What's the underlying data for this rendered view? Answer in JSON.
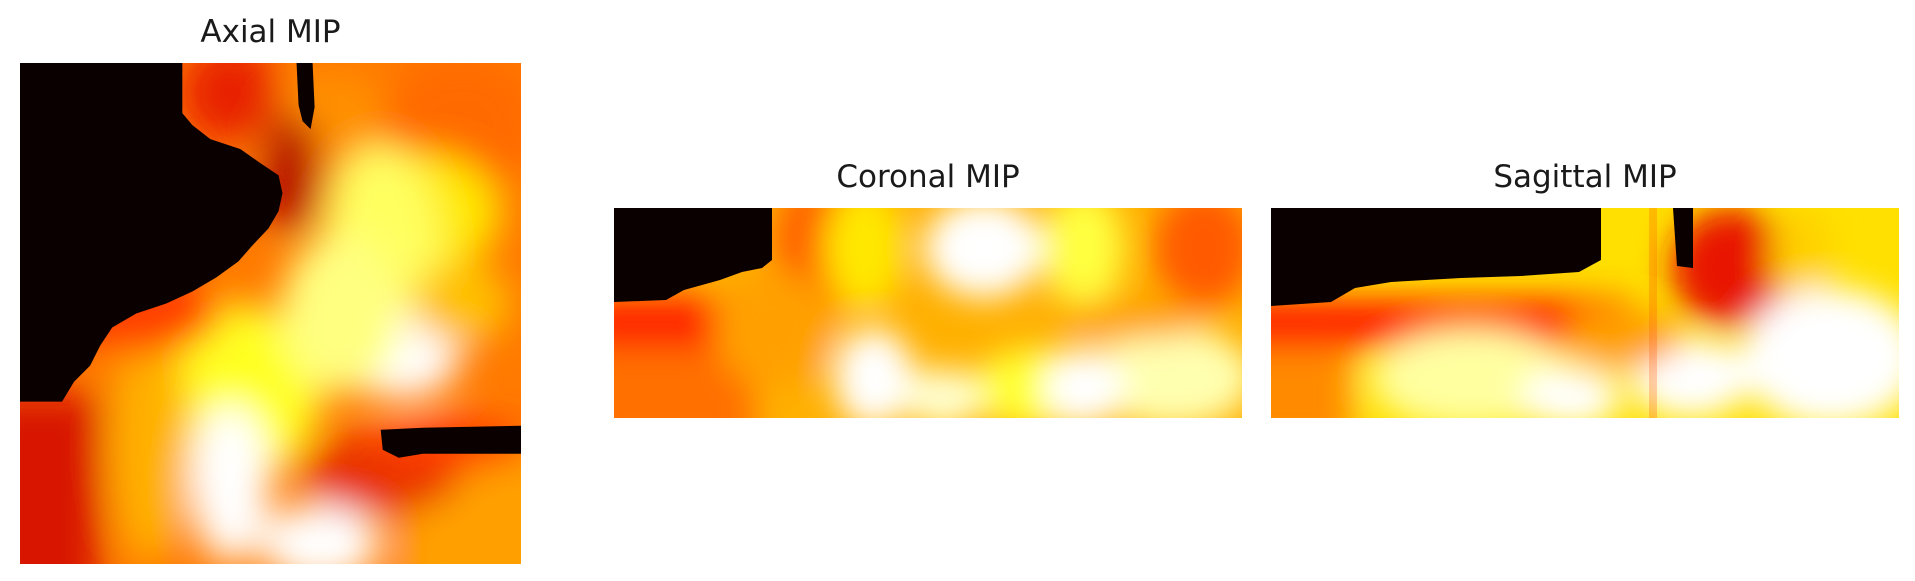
{
  "figure": {
    "panels": [
      {
        "id": "axial",
        "title": "Axial MIP",
        "colormap": "hot"
      },
      {
        "id": "coronal",
        "title": "Coronal MIP",
        "colormap": "hot"
      },
      {
        "id": "sagittal",
        "title": "Sagittal MIP",
        "colormap": "hot"
      }
    ]
  },
  "colors": {
    "black": "#0a0000",
    "dark_red": "#b00000",
    "red": "#e81000",
    "orange": "#ff6400",
    "amber": "#ffa000",
    "yellow": "#ffff00",
    "pale_yellow": "#ffffa0",
    "white": "#ffffff"
  }
}
